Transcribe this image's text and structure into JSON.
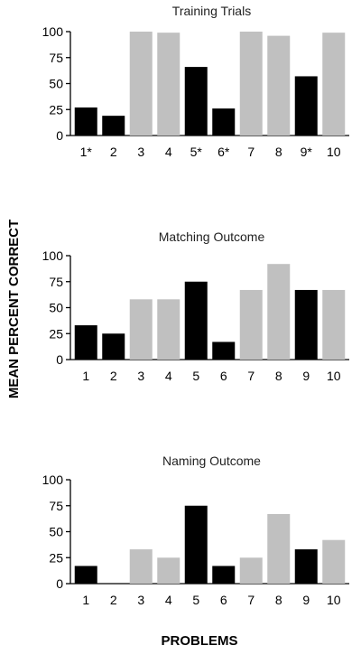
{
  "figure": {
    "ylabel": "MEAN PERCENT CORRECT",
    "xlabel": "PROBLEMS"
  },
  "colors": {
    "dark": "#000000",
    "light": "#c0c0c0"
  },
  "chart_data": [
    {
      "type": "bar",
      "title": "Training Trials",
      "categories": [
        "1*",
        "2",
        "3",
        "4",
        "5*",
        "6*",
        "7",
        "8",
        "9*",
        "10"
      ],
      "values": [
        27,
        19,
        100,
        99,
        66,
        26,
        100,
        96,
        57,
        99
      ],
      "bar_colors": [
        "dark",
        "dark",
        "light",
        "light",
        "dark",
        "dark",
        "light",
        "light",
        "dark",
        "light"
      ],
      "ylim": [
        0,
        100
      ],
      "yticks": [
        0,
        25,
        50,
        75,
        100
      ],
      "grid": false
    },
    {
      "type": "bar",
      "title": "Matching Outcome",
      "categories": [
        "1",
        "2",
        "3",
        "4",
        "5",
        "6",
        "7",
        "8",
        "9",
        "10"
      ],
      "values": [
        33,
        25,
        58,
        58,
        75,
        17,
        67,
        92,
        67,
        67
      ],
      "bar_colors": [
        "dark",
        "dark",
        "light",
        "light",
        "dark",
        "dark",
        "light",
        "light",
        "dark",
        "light"
      ],
      "ylim": [
        0,
        100
      ],
      "yticks": [
        0,
        25,
        50,
        75,
        100
      ],
      "grid": false
    },
    {
      "type": "bar",
      "title": "Naming Outcome",
      "categories": [
        "1",
        "2",
        "3",
        "4",
        "5",
        "6",
        "7",
        "8",
        "9",
        "10"
      ],
      "values": [
        17,
        0,
        33,
        25,
        75,
        17,
        25,
        67,
        33,
        42
      ],
      "bar_colors": [
        "dark",
        "dark",
        "light",
        "light",
        "dark",
        "dark",
        "light",
        "light",
        "dark",
        "light"
      ],
      "ylim": [
        0,
        100
      ],
      "yticks": [
        0,
        25,
        50,
        75,
        100
      ],
      "grid": false
    }
  ]
}
